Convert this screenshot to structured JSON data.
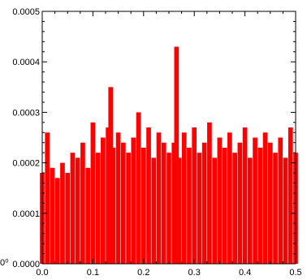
{
  "chart_data": {
    "type": "bar",
    "title": "",
    "xlabel": "",
    "ylabel": "",
    "xlim": [
      0.0,
      0.5
    ],
    "ylim": [
      0.0,
      0.0005
    ],
    "x_ticks": [
      {
        "value": 0.0,
        "label": "0.0"
      },
      {
        "value": 0.1,
        "label": "0.1"
      },
      {
        "value": 0.2,
        "label": "0.2"
      },
      {
        "value": 0.3,
        "label": "0.3"
      },
      {
        "value": 0.4,
        "label": "0.4"
      },
      {
        "value": 0.5,
        "label": "0.5"
      }
    ],
    "y_ticks": [
      {
        "value": 0.0,
        "label": "0.0000"
      },
      {
        "value": 0.0001,
        "label": "0.0001"
      },
      {
        "value": 0.0002,
        "label": "0.0002"
      },
      {
        "value": 0.0003,
        "label": "0.0003"
      },
      {
        "value": 0.0004,
        "label": "0.0004"
      },
      {
        "value": 0.0005,
        "label": "0.0005"
      }
    ],
    "edge_labels": [
      {
        "name": "y-axis-partial-label",
        "text": "0⁰"
      }
    ],
    "bar_color": "#ff0000",
    "grid": false,
    "series": [
      {
        "x": [
          0.0,
          0.01,
          0.02,
          0.03,
          0.04,
          0.05,
          0.06,
          0.07,
          0.08,
          0.09,
          0.1,
          0.11,
          0.12,
          0.13,
          0.135,
          0.14,
          0.15,
          0.16,
          0.17,
          0.18,
          0.19,
          0.2,
          0.21,
          0.22,
          0.23,
          0.24,
          0.25,
          0.26,
          0.265,
          0.27,
          0.28,
          0.29,
          0.3,
          0.31,
          0.32,
          0.33,
          0.34,
          0.35,
          0.36,
          0.37,
          0.38,
          0.39,
          0.4,
          0.41,
          0.42,
          0.43,
          0.44,
          0.45,
          0.46,
          0.47,
          0.48,
          0.49,
          0.5
        ],
        "values": [
          0.00018,
          0.00026,
          0.00019,
          0.00017,
          0.0002,
          0.00018,
          0.00022,
          0.00021,
          0.00024,
          0.00019,
          0.00028,
          0.00022,
          0.00025,
          0.00027,
          0.00035,
          0.00023,
          0.00026,
          0.00024,
          0.00022,
          0.00025,
          0.0003,
          0.00023,
          0.00027,
          0.00021,
          0.00026,
          0.00024,
          0.00022,
          0.00024,
          0.00043,
          0.00021,
          0.00026,
          0.00023,
          0.00027,
          0.00022,
          0.00024,
          0.00028,
          0.00021,
          0.00025,
          0.00023,
          0.00026,
          0.00022,
          0.00024,
          0.00027,
          0.00021,
          0.00025,
          0.00023,
          0.00026,
          0.00024,
          0.00022,
          0.00025,
          0.00021,
          0.00027,
          0.00022
        ]
      }
    ]
  }
}
